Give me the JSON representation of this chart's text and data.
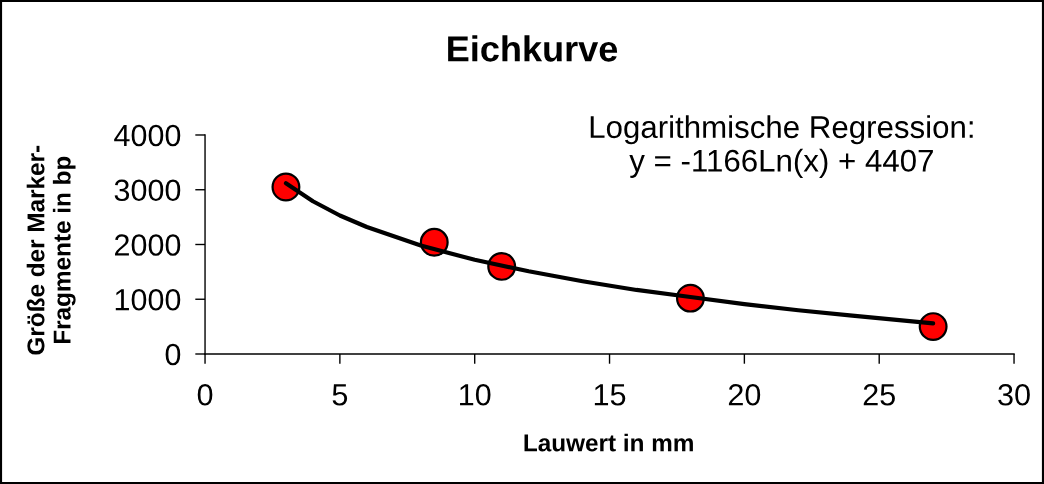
{
  "chart_data": {
    "type": "scatter",
    "title": "Eichkurve",
    "xlabel": "Lauwert in mm",
    "ylabel": "Größe der Marker-\nFragmente in bp",
    "annotations": [
      "Logarithmische Regression:\ny = -1166Ln(x) + 4407"
    ],
    "series": [
      {
        "color": "#ff0000",
        "marker": "circle",
        "x": [
          3,
          8.5,
          11,
          18,
          27
        ],
        "values": [
          3050,
          2040,
          1600,
          1020,
          500
        ]
      },
      {
        "type": "line",
        "color": "#000000",
        "marker": "none",
        "line_style": "solid",
        "x": [
          3,
          4,
          5,
          6,
          8,
          10,
          12,
          14,
          16,
          18,
          20,
          22,
          24,
          27
        ],
        "values": [
          3120,
          2790,
          2530,
          2320,
          1980,
          1720,
          1510,
          1330,
          1170,
          1040,
          910,
          800,
          700,
          560
        ]
      }
    ],
    "xlim": [
      0,
      30
    ],
    "ylim": [
      0,
      4000
    ],
    "xticks": [
      0,
      5,
      10,
      15,
      20,
      25,
      30
    ],
    "yticks": [
      0,
      1000,
      2000,
      3000,
      4000
    ],
    "grid": false,
    "legend": false
  }
}
